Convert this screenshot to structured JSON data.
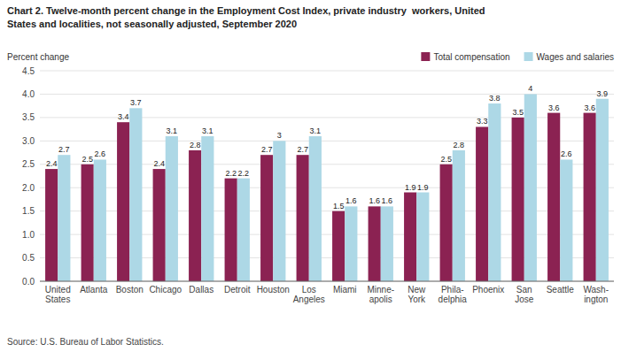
{
  "chart_data": {
    "type": "bar",
    "title": "Chart 2. Twelve-month percent change in the Employment Cost Index, private industry  workers, United\nStates and localities, not seasonally adjusted, September 2020",
    "ylabel": "Percent change",
    "source": "Source: U.S. Bureau of Labor Statistics.",
    "categories": [
      "United\nStates",
      "Atlanta",
      "Boston",
      "Chicago",
      "Dallas",
      "Detroit",
      "Houston",
      "Los\nAngeles",
      "Miami",
      "Minne-\napolis",
      "New\nYork",
      "Phila-\ndelphia",
      "Phoenix",
      "San\nJose",
      "Seattle",
      "Wash-\nington"
    ],
    "series": [
      {
        "name": "Total compensation",
        "color": "#8B2252",
        "values": [
          2.4,
          2.5,
          3.4,
          2.4,
          2.8,
          2.2,
          2.7,
          2.7,
          1.5,
          1.6,
          1.9,
          2.5,
          3.3,
          3.5,
          3.6,
          3.6
        ]
      },
      {
        "name": "Wages and salaries",
        "color": "#ADD8E6",
        "values": [
          2.7,
          2.6,
          3.7,
          3.1,
          3.1,
          2.2,
          3.0,
          3.1,
          1.6,
          1.6,
          1.9,
          2.8,
          3.8,
          4.0,
          2.6,
          3.9
        ]
      }
    ],
    "ylim": [
      0,
      4.5
    ],
    "yticks": [
      {
        "value": 0.0,
        "label": "0.0"
      },
      0.5,
      {
        "value": 1.0,
        "label": "1.0"
      },
      1.5,
      {
        "value": 2.0,
        "label": "2.0"
      },
      2.5,
      {
        "value": 3.0,
        "label": "3.0"
      },
      3.5,
      {
        "value": 4.0,
        "label": "4.0"
      },
      4.5
    ],
    "grid": true,
    "legend": "upper right",
    "data_labels": true
  }
}
